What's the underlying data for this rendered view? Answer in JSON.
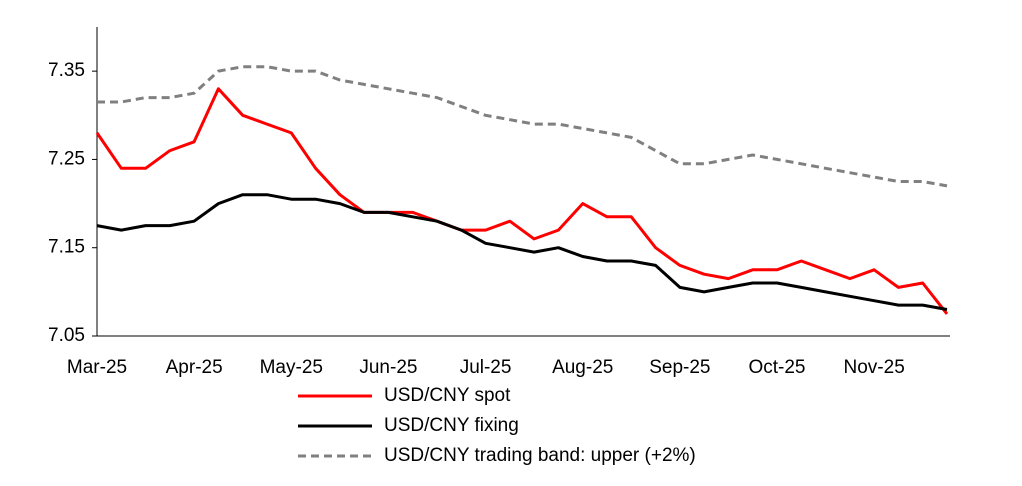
{
  "chart_data": {
    "type": "line",
    "categories": [
      "Mar-25",
      null,
      null,
      null,
      "Apr-25",
      null,
      null,
      null,
      "May-25",
      null,
      null,
      null,
      "Jun-25",
      null,
      null,
      null,
      "Jul-25",
      null,
      null,
      null,
      "Aug-25",
      null,
      null,
      null,
      "Sep-25",
      null,
      null,
      null,
      "Oct-25",
      null,
      null,
      null,
      "Nov-25",
      null,
      null,
      null
    ],
    "series": [
      {
        "name": "USD/CNY spot",
        "color": "#ff0000",
        "dashed": false,
        "values": [
          7.28,
          7.24,
          7.24,
          7.26,
          7.27,
          7.33,
          7.3,
          7.29,
          7.28,
          7.24,
          7.21,
          7.19,
          7.19,
          7.19,
          7.18,
          7.17,
          7.17,
          7.18,
          7.16,
          7.17,
          7.2,
          7.185,
          7.185,
          7.15,
          7.13,
          7.12,
          7.115,
          7.125,
          7.125,
          7.135,
          7.125,
          7.115,
          7.125,
          7.105,
          7.11,
          7.075
        ]
      },
      {
        "name": "USD/CNY fixing",
        "color": "#000000",
        "dashed": false,
        "values": [
          7.175,
          7.17,
          7.175,
          7.175,
          7.18,
          7.2,
          7.21,
          7.21,
          7.205,
          7.205,
          7.2,
          7.19,
          7.19,
          7.185,
          7.18,
          7.17,
          7.155,
          7.15,
          7.145,
          7.15,
          7.14,
          7.135,
          7.135,
          7.13,
          7.105,
          7.1,
          7.105,
          7.11,
          7.11,
          7.105,
          7.1,
          7.095,
          7.09,
          7.085,
          7.085,
          7.08
        ]
      },
      {
        "name": "USD/CNY trading band: upper (+2%)",
        "color": "#808080",
        "dashed": true,
        "values": [
          7.315,
          7.315,
          7.32,
          7.32,
          7.325,
          7.35,
          7.355,
          7.355,
          7.35,
          7.35,
          7.34,
          7.335,
          7.33,
          7.325,
          7.32,
          7.31,
          7.3,
          7.295,
          7.29,
          7.29,
          7.285,
          7.28,
          7.275,
          7.26,
          7.245,
          7.245,
          7.25,
          7.255,
          7.25,
          7.245,
          7.24,
          7.235,
          7.23,
          7.225,
          7.225,
          7.22
        ]
      }
    ],
    "ylim": [
      7.05,
      7.4
    ],
    "yticks": [
      7.05,
      7.15,
      7.25,
      7.35
    ],
    "grid": false
  }
}
